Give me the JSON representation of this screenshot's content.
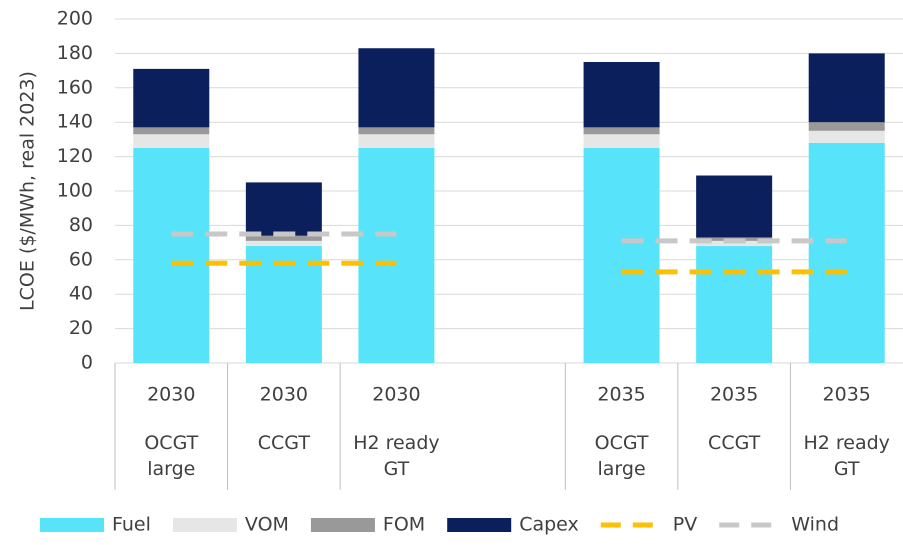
{
  "chart_data": {
    "type": "bar",
    "stacked": true,
    "y_label": "LCOE ($/MWh, real 2023)",
    "categories": [
      "2030",
      "2030",
      "2030",
      null,
      "2035",
      "2035",
      "2035"
    ],
    "subcategories": [
      "OCGT large",
      "CCGT",
      "H2 ready GT",
      null,
      "OCGT large",
      "CCGT",
      "H2 ready GT"
    ],
    "series": [
      {
        "name": "Fuel",
        "color": "#57e3fa",
        "values": [
          125,
          68,
          125,
          null,
          125,
          68,
          128
        ]
      },
      {
        "name": "VOM",
        "color": "#e6e6e6",
        "values": [
          8,
          3,
          8,
          null,
          8,
          3,
          7
        ]
      },
      {
        "name": "FOM",
        "color": "#999999",
        "values": [
          4,
          3,
          4,
          null,
          4,
          2,
          5
        ]
      },
      {
        "name": "Capex",
        "color": "#0a1f5c",
        "values": [
          34,
          31,
          46,
          null,
          38,
          36,
          40
        ]
      },
      {
        "name": "PV",
        "color": "#ffc000",
        "type": "line",
        "style": "dashed",
        "values": [
          58,
          58,
          58,
          null,
          53,
          53,
          53
        ]
      },
      {
        "name": "Wind",
        "color": "#c8c8c8",
        "type": "line",
        "style": "dashed",
        "values": [
          75,
          75,
          75,
          null,
          71,
          71,
          71
        ]
      }
    ],
    "ylim": [
      0,
      200
    ],
    "yticks": [
      0,
      20,
      40,
      60,
      80,
      100,
      120,
      140,
      160,
      180,
      200
    ],
    "grid": true,
    "legend": "bottom"
  }
}
